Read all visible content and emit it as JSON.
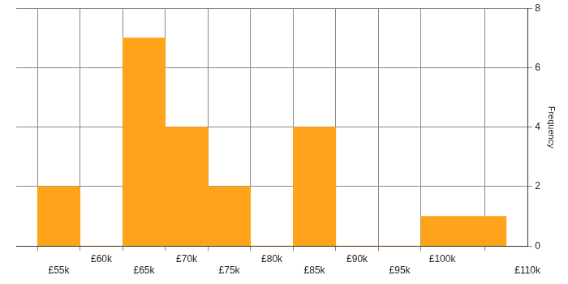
{
  "chart_data": {
    "type": "histogram",
    "bins": [
      52500,
      57500,
      62500,
      67500,
      72500,
      77500,
      82500,
      87500,
      92500,
      97500,
      102500,
      107500
    ],
    "values": [
      2,
      0,
      7,
      4,
      2,
      0,
      4,
      0,
      0,
      1,
      1
    ],
    "color": "#ffa31a",
    "xlim": [
      50000,
      110000
    ],
    "xticks": [
      {
        "value": 55000,
        "label": "£55k"
      },
      {
        "value": 60000,
        "label": "£60k"
      },
      {
        "value": 65000,
        "label": "£65k"
      },
      {
        "value": 70000,
        "label": "£70k"
      },
      {
        "value": 75000,
        "label": "£75k"
      },
      {
        "value": 80000,
        "label": "£80k"
      },
      {
        "value": 85000,
        "label": "£85k"
      },
      {
        "value": 90000,
        "label": "£90k"
      },
      {
        "value": 95000,
        "label": "£95k"
      },
      {
        "value": 100000,
        "label": "£100k"
      },
      {
        "value": 110000,
        "label": "£110k"
      }
    ],
    "ylabel": "Frequency",
    "ylim": [
      0,
      8
    ],
    "yticks": [
      0,
      2,
      4,
      6,
      8
    ],
    "grid": true
  }
}
